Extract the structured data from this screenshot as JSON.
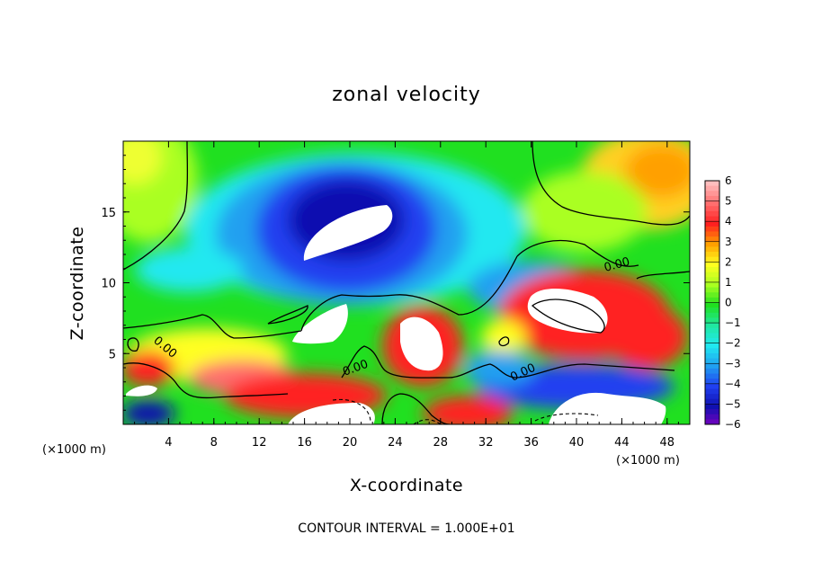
{
  "chart_data": {
    "type": "heatmap",
    "title": "zonal velocity",
    "xlabel": "X-coordinate",
    "ylabel": "Z-coordinate",
    "x_unit": "(×1000 m)",
    "y_unit": "(×1000 m)",
    "xlim": [
      0,
      50
    ],
    "ylim": [
      0,
      20
    ],
    "x_ticks": [
      "4",
      "8",
      "12",
      "16",
      "20",
      "24",
      "28",
      "32",
      "36",
      "40",
      "44",
      "48"
    ],
    "y_ticks": [
      "5",
      "10",
      "15"
    ],
    "colorbar": {
      "ticks": [
        "6",
        "5",
        "4",
        "3",
        "2",
        "1",
        "0",
        "−1",
        "−2",
        "−3",
        "−4",
        "−5",
        "−6"
      ],
      "range": [
        -6,
        6
      ],
      "colors": [
        "#ffbebe",
        "#ff6e6e",
        "#ff2020",
        "#ffa000",
        "#ffff20",
        "#aaff20",
        "#20e020",
        "#20e8a0",
        "#20e8f0",
        "#20a0f0",
        "#2040f0",
        "#1010b0",
        "#8000c0"
      ]
    },
    "contour_labels": [
      "0.00",
      "0.00",
      "0.00",
      "0.00"
    ],
    "note": "CONTOUR INTERVAL = 1.000E+01"
  }
}
